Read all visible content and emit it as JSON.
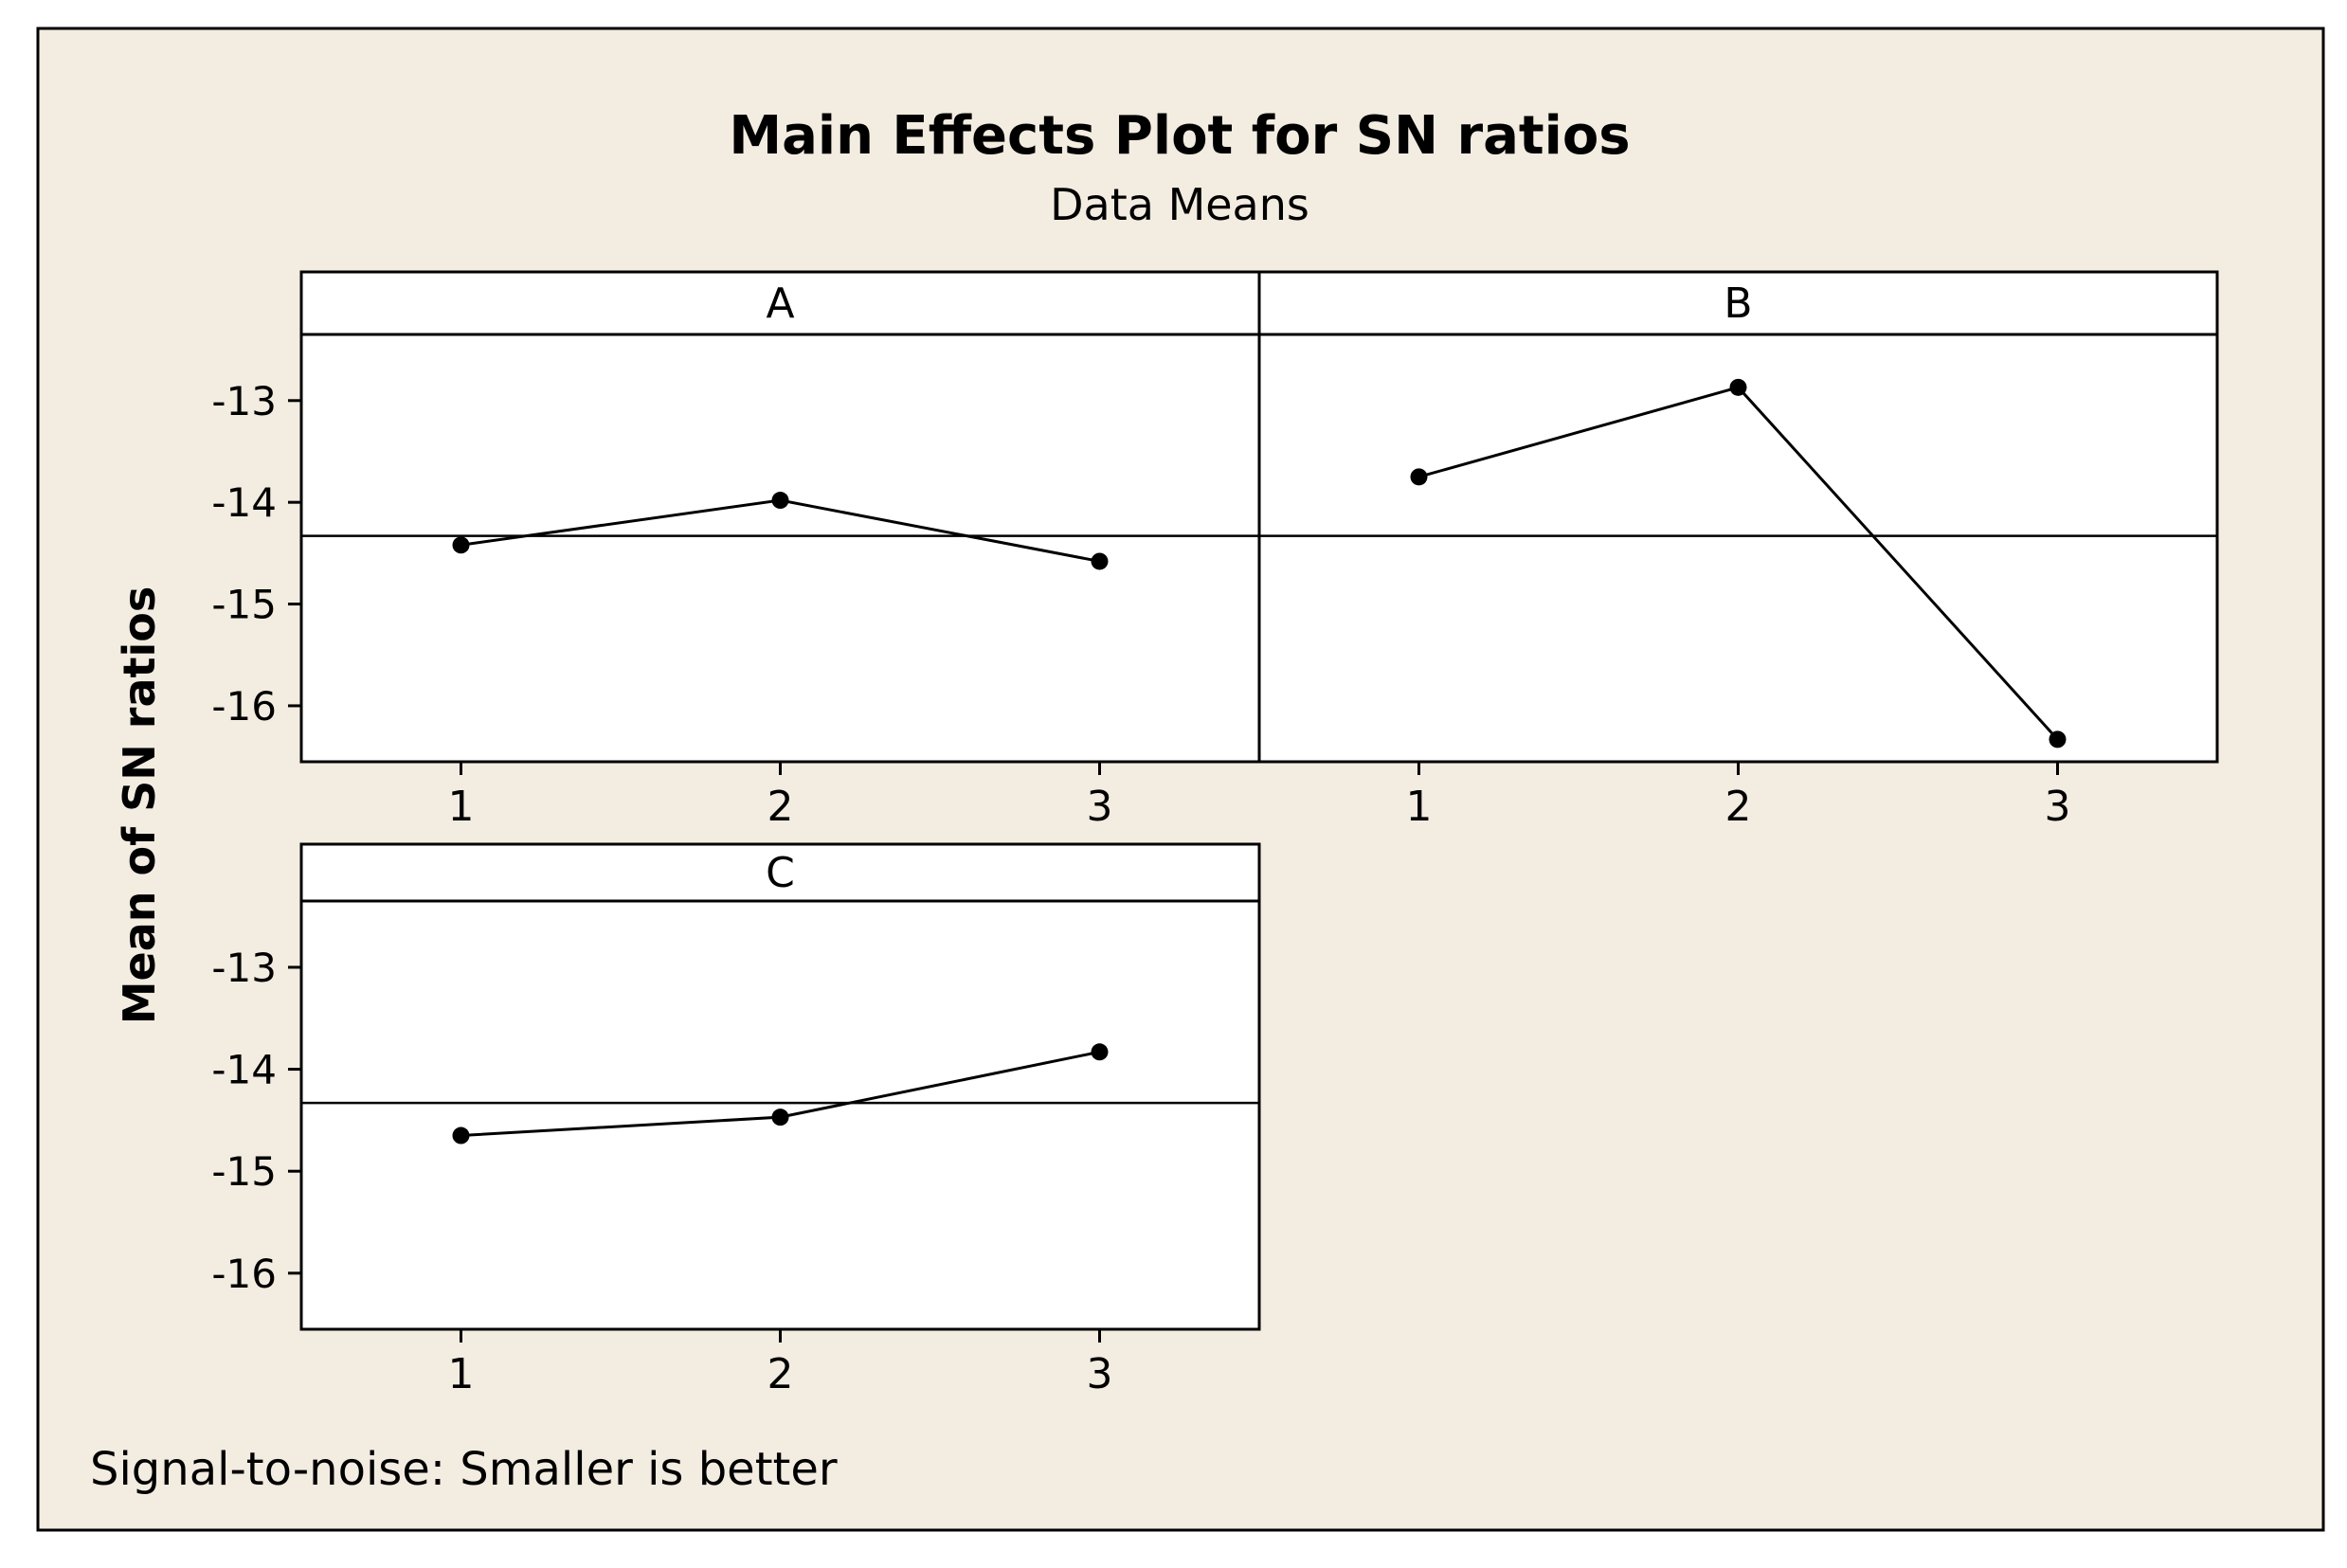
{
  "title": "Main Effects Plot for SN ratios",
  "subtitle": "Data Means",
  "ylabel": "Mean of SN ratios",
  "footnote": "Signal-to-noise: Smaller is better",
  "colors": {
    "background": "#f3ece1",
    "panel": "#ffffff",
    "line": "#000000"
  },
  "chart_data": {
    "type": "line",
    "x_ticks": [
      "1",
      "2",
      "3"
    ],
    "y_ticks": [
      -13,
      -14,
      -15,
      -16
    ],
    "ylim": [
      -16.55,
      -12.35
    ],
    "overall_mean": -14.33,
    "panels": [
      {
        "name": "A",
        "levels": [
          "1",
          "2",
          "3"
        ],
        "values": [
          -14.42,
          -13.98,
          -14.58
        ]
      },
      {
        "name": "B",
        "levels": [
          "1",
          "2",
          "3"
        ],
        "values": [
          -13.75,
          -12.87,
          -16.33
        ]
      },
      {
        "name": "C",
        "levels": [
          "1",
          "2",
          "3"
        ],
        "values": [
          -14.65,
          -14.47,
          -13.83
        ]
      }
    ]
  }
}
